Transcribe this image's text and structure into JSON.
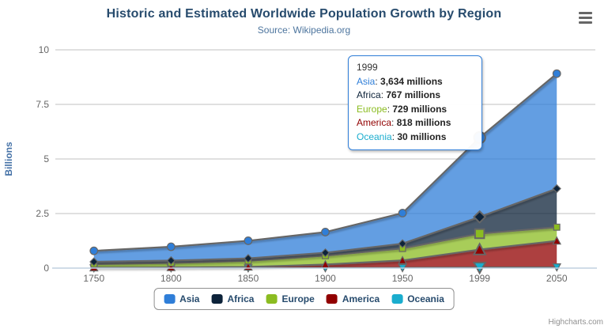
{
  "chart_data": {
    "type": "area",
    "stacked": true,
    "title": "Historic and Estimated Worldwide Population Growth by Region",
    "subtitle": "Source: Wikipedia.org",
    "xlabel": "",
    "ylabel": "Billions",
    "unit": "millions",
    "categories": [
      "1750",
      "1800",
      "1850",
      "1900",
      "1950",
      "1999",
      "2050"
    ],
    "series": [
      {
        "name": "Asia",
        "color": "#2f7ed8",
        "marker": "circle",
        "values": [
          502,
          635,
          809,
          947,
          1402,
          3634,
          5268
        ]
      },
      {
        "name": "Africa",
        "color": "#0d233a",
        "marker": "diamond",
        "values": [
          106,
          107,
          111,
          133,
          221,
          767,
          1766
        ]
      },
      {
        "name": "Europe",
        "color": "#8bbc21",
        "marker": "square",
        "values": [
          163,
          203,
          276,
          408,
          547,
          729,
          628
        ]
      },
      {
        "name": "America",
        "color": "#910000",
        "marker": "triangle",
        "values": [
          18,
          31,
          54,
          156,
          339,
          818,
          1201
        ]
      },
      {
        "name": "Oceania",
        "color": "#1aadce",
        "marker": "triangle-down",
        "values": [
          2,
          2,
          2,
          6,
          13,
          30,
          46
        ]
      }
    ],
    "ylim": [
      0,
      10
    ],
    "yticks": [
      0,
      2.5,
      5,
      7.5,
      10
    ],
    "grid": true,
    "legend_position": "bottom",
    "hover_index": 5
  },
  "tooltip": {
    "header": "1999",
    "rows": [
      {
        "name": "Asia",
        "value": "3,634 millions"
      },
      {
        "name": "Africa",
        "value": "767 millions"
      },
      {
        "name": "Europe",
        "value": "729 millions"
      },
      {
        "name": "America",
        "value": "818 millions"
      },
      {
        "name": "Oceania",
        "value": "30 millions"
      }
    ]
  },
  "icons": {
    "context_menu": "hamburger-icon"
  },
  "credits": {
    "label": "Highcharts.com"
  }
}
